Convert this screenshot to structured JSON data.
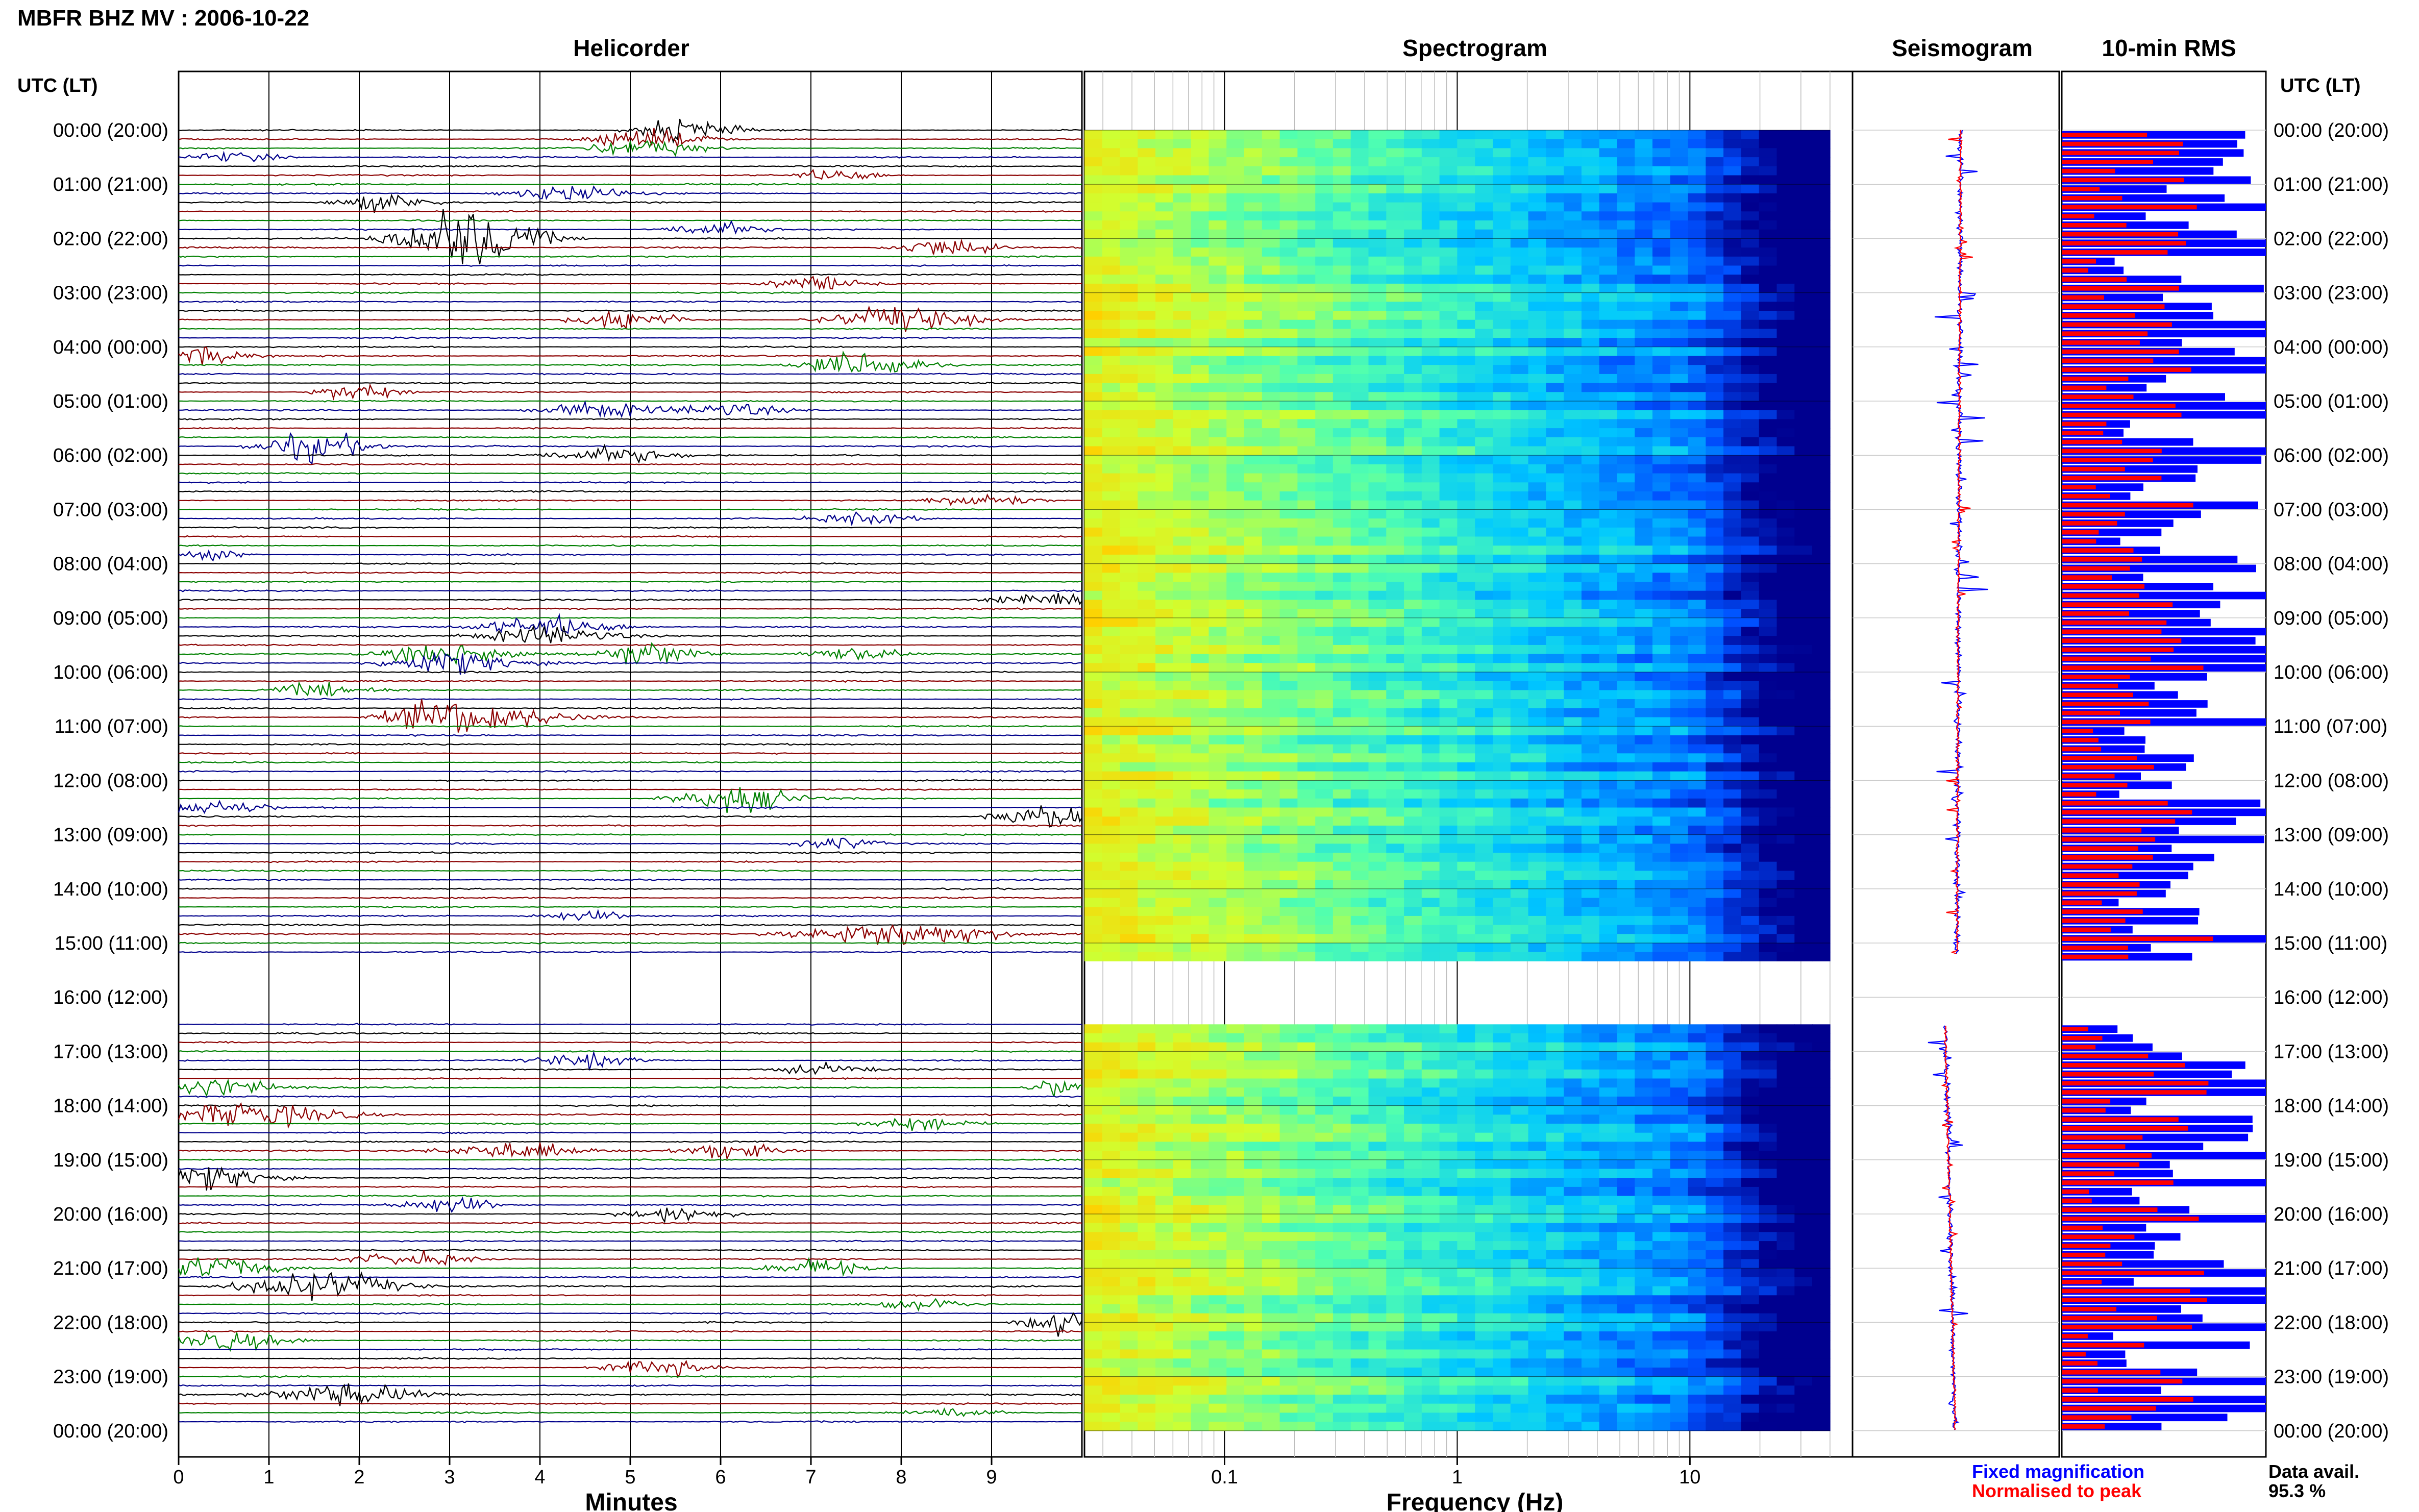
{
  "figure": {
    "title": "MBFR BHZ MV : 2006-10-22",
    "time_axis_label": "UTC (LT)",
    "colors": {
      "trace_black": "#000000",
      "trace_red": "#8b0000",
      "trace_green": "#008000",
      "trace_blue": "#00008b",
      "fixed": "#0000ff",
      "normalised": "#ff0000"
    }
  },
  "chart_data": [
    {
      "type": "line",
      "panel": "helicorder",
      "title": "Helicorder",
      "xlabel": "Minutes",
      "xlim": [
        0,
        10
      ],
      "x_ticks": [
        "0",
        "1",
        "2",
        "3",
        "4",
        "5",
        "6",
        "7",
        "8",
        "9"
      ],
      "y_tick_labels": [
        "00:00 (20:00)",
        "01:00 (21:00)",
        "02:00 (22:00)",
        "03:00 (23:00)",
        "04:00 (00:00)",
        "05:00 (01:00)",
        "06:00 (02:00)",
        "07:00 (03:00)",
        "08:00 (04:00)",
        "09:00 (05:00)",
        "10:00 (06:00)",
        "11:00 (07:00)",
        "12:00 (08:00)",
        "13:00 (09:00)",
        "14:00 (10:00)",
        "15:00 (11:00)",
        "16:00 (12:00)",
        "17:00 (13:00)",
        "18:00 (14:00)",
        "19:00 (15:00)",
        "20:00 (16:00)",
        "21:00 (17:00)",
        "22:00 (18:00)",
        "23:00 (19:00)",
        "00:00 (20:00)"
      ],
      "gap_hours": [
        15.2,
        16.5
      ],
      "events": [
        {
          "hour": 0.0,
          "minute": 5.6,
          "amp": 2.2,
          "dur": 1.0
        },
        {
          "hour": 0.25,
          "minute": 5.2,
          "amp": 1.8,
          "dur": 1.2
        },
        {
          "hour": 0.5,
          "minute": 0.6,
          "amp": 1.0,
          "dur": 1.0
        },
        {
          "hour": 0.8,
          "minute": 7.3,
          "amp": 1.2,
          "dur": 0.8
        },
        {
          "hour": 1.2,
          "minute": 4.3,
          "amp": 1.6,
          "dur": 1.2
        },
        {
          "hour": 1.35,
          "minute": 2.3,
          "amp": 1.8,
          "dur": 1.0
        },
        {
          "hour": 1.8,
          "minute": 5.9,
          "amp": 1.5,
          "dur": 1.0
        },
        {
          "hour": 2.0,
          "minute": 3.2,
          "amp": 6.5,
          "dur": 1.4
        },
        {
          "hour": 2.2,
          "minute": 8.5,
          "amp": 2.0,
          "dur": 1.0
        },
        {
          "hour": 2.8,
          "minute": 7.1,
          "amp": 1.6,
          "dur": 1.0
        },
        {
          "hour": 3.5,
          "minute": 5.0,
          "amp": 2.2,
          "dur": 1.0
        },
        {
          "hour": 3.55,
          "minute": 8.0,
          "amp": 2.6,
          "dur": 1.4
        },
        {
          "hour": 4.3,
          "minute": 7.6,
          "amp": 2.8,
          "dur": 1.2
        },
        {
          "hour": 4.1,
          "minute": 0.3,
          "amp": 1.8,
          "dur": 0.8
        },
        {
          "hour": 4.8,
          "minute": 2.0,
          "amp": 1.8,
          "dur": 0.8
        },
        {
          "hour": 5.1,
          "minute": 4.7,
          "amp": 1.6,
          "dur": 1.2
        },
        {
          "hour": 5.1,
          "minute": 6.1,
          "amp": 1.4,
          "dur": 1.0
        },
        {
          "hour": 5.8,
          "minute": 1.5,
          "amp": 3.0,
          "dur": 1.1
        },
        {
          "hour": 6.0,
          "minute": 4.8,
          "amp": 1.6,
          "dur": 1.4
        },
        {
          "hour": 6.9,
          "minute": 8.9,
          "amp": 1.4,
          "dur": 1.0
        },
        {
          "hour": 7.2,
          "minute": 7.6,
          "amp": 1.2,
          "dur": 1.0
        },
        {
          "hour": 7.9,
          "minute": 0.4,
          "amp": 1.0,
          "dur": 0.6
        },
        {
          "hour": 8.6,
          "minute": 9.6,
          "amp": 1.6,
          "dur": 1.0
        },
        {
          "hour": 9.25,
          "minute": 4.1,
          "amp": 2.0,
          "dur": 1.4
        },
        {
          "hour": 9.6,
          "minute": 5.2,
          "amp": 2.4,
          "dur": 1.0
        },
        {
          "hour": 9.75,
          "minute": 3.0,
          "amp": 2.2,
          "dur": 1.4
        },
        {
          "hour": 9.6,
          "minute": 7.5,
          "amp": 1.6,
          "dur": 1.0
        },
        {
          "hour": 10.4,
          "minute": 1.6,
          "amp": 1.4,
          "dur": 1.0
        },
        {
          "hour": 10.8,
          "minute": 2.9,
          "amp": 2.4,
          "dur": 1.2
        },
        {
          "hour": 10.8,
          "minute": 3.5,
          "amp": 2.0,
          "dur": 1.6
        },
        {
          "hour": 12.3,
          "minute": 6.2,
          "amp": 2.6,
          "dur": 1.2
        },
        {
          "hour": 12.5,
          "minute": 0.4,
          "amp": 1.6,
          "dur": 1.0
        },
        {
          "hour": 12.6,
          "minute": 9.6,
          "amp": 2.4,
          "dur": 1.0
        },
        {
          "hour": 13.1,
          "minute": 7.3,
          "amp": 1.2,
          "dur": 0.8
        },
        {
          "hour": 14.5,
          "minute": 4.5,
          "amp": 1.0,
          "dur": 1.0
        },
        {
          "hour": 14.8,
          "minute": 8.0,
          "amp": 2.6,
          "dur": 2.0
        },
        {
          "hour": 17.2,
          "minute": 4.5,
          "amp": 1.4,
          "dur": 1.0
        },
        {
          "hour": 17.4,
          "minute": 7.1,
          "amp": 1.0,
          "dur": 1.0
        },
        {
          "hour": 17.6,
          "minute": 0.3,
          "amp": 2.0,
          "dur": 1.4
        },
        {
          "hour": 17.6,
          "minute": 9.8,
          "amp": 2.2,
          "dur": 0.6
        },
        {
          "hour": 18.2,
          "minute": 0.8,
          "amp": 2.4,
          "dur": 2.0
        },
        {
          "hour": 18.4,
          "minute": 8.2,
          "amp": 1.4,
          "dur": 1.0
        },
        {
          "hour": 18.8,
          "minute": 3.7,
          "amp": 1.8,
          "dur": 1.4
        },
        {
          "hour": 18.8,
          "minute": 6.1,
          "amp": 1.6,
          "dur": 1.0
        },
        {
          "hour": 19.3,
          "minute": 0.4,
          "amp": 2.4,
          "dur": 1.2
        },
        {
          "hour": 19.9,
          "minute": 3.0,
          "amp": 1.6,
          "dur": 1.0
        },
        {
          "hour": 20.0,
          "minute": 5.5,
          "amp": 1.6,
          "dur": 1.0
        },
        {
          "hour": 20.8,
          "minute": 2.6,
          "amp": 1.4,
          "dur": 1.2
        },
        {
          "hour": 21.0,
          "minute": 0.4,
          "amp": 2.4,
          "dur": 1.2
        },
        {
          "hour": 21.0,
          "minute": 7.1,
          "amp": 1.8,
          "dur": 1.0
        },
        {
          "hour": 21.4,
          "minute": 1.6,
          "amp": 2.8,
          "dur": 1.6
        },
        {
          "hour": 21.6,
          "minute": 8.2,
          "amp": 1.4,
          "dur": 1.0
        },
        {
          "hour": 22.0,
          "minute": 9.8,
          "amp": 2.6,
          "dur": 0.8
        },
        {
          "hour": 22.3,
          "minute": 0.6,
          "amp": 1.8,
          "dur": 1.2
        },
        {
          "hour": 22.9,
          "minute": 5.3,
          "amp": 1.8,
          "dur": 1.0
        },
        {
          "hour": 23.4,
          "minute": 1.9,
          "amp": 2.2,
          "dur": 1.6
        },
        {
          "hour": 23.6,
          "minute": 8.6,
          "amp": 1.2,
          "dur": 0.8
        }
      ]
    },
    {
      "type": "heatmap",
      "panel": "spectrogram",
      "title": "Spectrogram",
      "xlabel": "Frequency (Hz)",
      "x_scale": "log",
      "xlim": [
        0.025,
        50
      ],
      "x_ticks": [
        0.1,
        1,
        10
      ],
      "x_tick_labels": [
        "0.1",
        "1",
        "10"
      ],
      "colormap": [
        "#00008f",
        "#0050ff",
        "#00c8ff",
        "#50ffb0",
        "#d0ff30",
        "#ffd000"
      ]
    },
    {
      "type": "line",
      "panel": "seismogram",
      "title": "Seismogram"
    },
    {
      "type": "bar",
      "panel": "rms",
      "title": "10-min RMS",
      "series": [
        {
          "name": "Fixed magnification",
          "color": "#0000ff"
        },
        {
          "name": "Normalised to peak",
          "color": "#ff0000"
        }
      ]
    }
  ],
  "footer": {
    "data_avail_label": "Data avail.",
    "data_avail_value": "95.3 %"
  }
}
